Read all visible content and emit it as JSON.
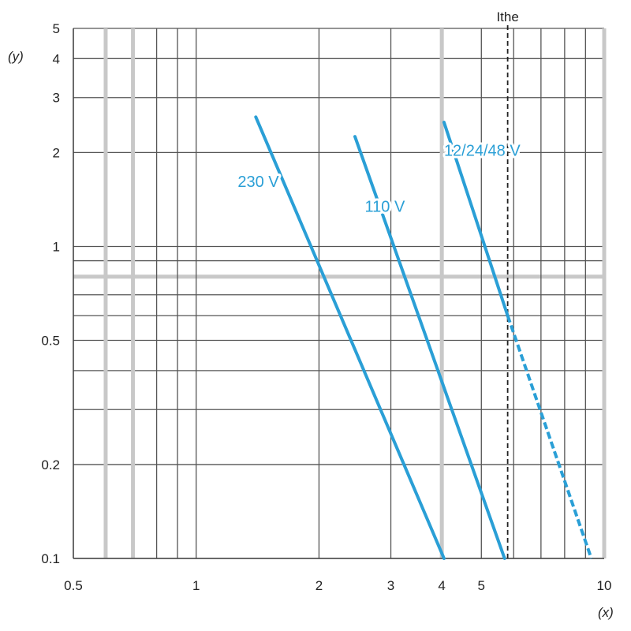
{
  "chart_data": {
    "type": "line",
    "title": "",
    "x_scale": "log",
    "y_scale": "log",
    "xlabel": "(x)",
    "ylabel": "(y)",
    "xlim": [
      0.5,
      10
    ],
    "ylim": [
      0.1,
      5
    ],
    "grid": true,
    "x_tick_labels": [
      {
        "value": 0.5,
        "label": "0.5"
      },
      {
        "value": 1,
        "label": "1"
      },
      {
        "value": 2,
        "label": "2"
      },
      {
        "value": 3,
        "label": "3"
      },
      {
        "value": 4,
        "label": "4"
      },
      {
        "value": 5,
        "label": "5"
      },
      {
        "value": 10,
        "label": "10"
      }
    ],
    "y_tick_labels": [
      {
        "value": 0.1,
        "label": "0.1"
      },
      {
        "value": 0.2,
        "label": "0.2"
      },
      {
        "value": 0.5,
        "label": "0.5"
      },
      {
        "value": 1,
        "label": "1"
      },
      {
        "value": 2,
        "label": "2"
      },
      {
        "value": 3,
        "label": "3"
      },
      {
        "value": 4,
        "label": "4"
      },
      {
        "value": 5,
        "label": "5"
      }
    ],
    "x_gridlines": [
      0.6,
      0.7,
      0.8,
      0.9,
      1,
      2,
      3,
      4,
      5,
      6,
      7,
      8,
      9,
      10
    ],
    "x_gridlines_emphasized": [
      0.6,
      0.7,
      4,
      10
    ],
    "y_gridlines": [
      0.1,
      0.2,
      0.3,
      0.4,
      0.5,
      0.6,
      0.7,
      0.8,
      0.9,
      1,
      2,
      3,
      4,
      5
    ],
    "y_gridlines_emphasized": [
      0.8
    ],
    "reference_line": {
      "label": "Ithe",
      "x": 5.8,
      "style": "dashed"
    },
    "series_color": "#2a9fd6",
    "series": [
      {
        "name": "230 V",
        "points": [
          [
            1.4,
            2.6
          ],
          [
            4.05,
            0.1
          ]
        ]
      },
      {
        "name": "110 V",
        "points": [
          [
            2.45,
            2.25
          ],
          [
            5.7,
            0.1
          ]
        ]
      },
      {
        "name": "12/24/48 V",
        "points": [
          [
            4.05,
            2.5
          ],
          [
            5.8,
            0.6
          ]
        ],
        "extension": {
          "points": [
            [
              5.8,
              0.6
            ],
            [
              9.3,
              0.1
            ]
          ],
          "style": "dashed"
        }
      }
    ]
  }
}
